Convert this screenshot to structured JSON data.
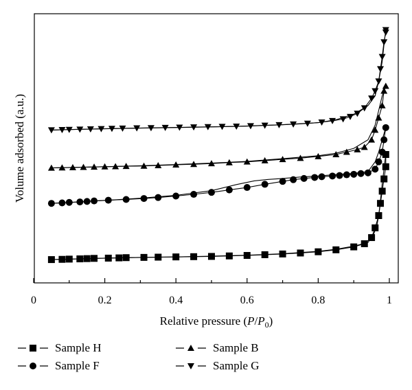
{
  "chart_data": {
    "type": "scatter",
    "xlabel": "Relative pressure (P/P0)",
    "xlabel_parts": [
      "Relative pressure (",
      "P",
      "/",
      "P",
      "0",
      ")"
    ],
    "ylabel": "Volume adsorbed (a.u.)",
    "xlim": [
      0,
      1
    ],
    "xticks": [
      "0",
      "0.2",
      "0.4",
      "0.6",
      "0.8",
      "1"
    ],
    "yticks_shown": false,
    "grid": false,
    "legend_position": "bottom",
    "series": [
      {
        "name": "Sample H",
        "marker": "square",
        "adsorption": [
          [
            0.05,
            0.07
          ],
          [
            0.08,
            0.071
          ],
          [
            0.1,
            0.072
          ],
          [
            0.13,
            0.073
          ],
          [
            0.15,
            0.074
          ],
          [
            0.17,
            0.075
          ],
          [
            0.21,
            0.076
          ],
          [
            0.24,
            0.077
          ],
          [
            0.26,
            0.078
          ],
          [
            0.31,
            0.079
          ],
          [
            0.35,
            0.08
          ],
          [
            0.4,
            0.081
          ],
          [
            0.45,
            0.082
          ],
          [
            0.5,
            0.083
          ],
          [
            0.55,
            0.085
          ],
          [
            0.6,
            0.087
          ],
          [
            0.65,
            0.09
          ],
          [
            0.7,
            0.093
          ],
          [
            0.75,
            0.097
          ],
          [
            0.8,
            0.102
          ],
          [
            0.85,
            0.11
          ],
          [
            0.9,
            0.122
          ],
          [
            0.93,
            0.135
          ],
          [
            0.95,
            0.16
          ],
          [
            0.96,
            0.2
          ],
          [
            0.97,
            0.25
          ],
          [
            0.975,
            0.3
          ],
          [
            0.98,
            0.35
          ],
          [
            0.985,
            0.4
          ],
          [
            0.99,
            0.45
          ],
          [
            0.99,
            0.5
          ]
        ],
        "desorption": [
          [
            0.99,
            0.5
          ],
          [
            0.985,
            0.44
          ],
          [
            0.98,
            0.38
          ],
          [
            0.975,
            0.31
          ],
          [
            0.97,
            0.25
          ],
          [
            0.965,
            0.21
          ],
          [
            0.955,
            0.17
          ],
          [
            0.94,
            0.14
          ],
          [
            0.9,
            0.125
          ],
          [
            0.85,
            0.112
          ],
          [
            0.8,
            0.104
          ],
          [
            0.7,
            0.094
          ],
          [
            0.6,
            0.088
          ],
          [
            0.5,
            0.084
          ],
          [
            0.4,
            0.081
          ],
          [
            0.3,
            0.079
          ],
          [
            0.2,
            0.076
          ],
          [
            0.1,
            0.072
          ],
          [
            0.05,
            0.07
          ]
        ]
      },
      {
        "name": "Sample F",
        "marker": "circle",
        "adsorption": [
          [
            0.05,
            0.3
          ],
          [
            0.08,
            0.302
          ],
          [
            0.1,
            0.304
          ],
          [
            0.13,
            0.306
          ],
          [
            0.15,
            0.308
          ],
          [
            0.17,
            0.31
          ],
          [
            0.21,
            0.313
          ],
          [
            0.26,
            0.316
          ],
          [
            0.31,
            0.32
          ],
          [
            0.35,
            0.324
          ],
          [
            0.4,
            0.33
          ],
          [
            0.45,
            0.337
          ],
          [
            0.5,
            0.345
          ],
          [
            0.55,
            0.355
          ],
          [
            0.6,
            0.365
          ],
          [
            0.65,
            0.378
          ],
          [
            0.7,
            0.39
          ],
          [
            0.73,
            0.397
          ],
          [
            0.76,
            0.402
          ],
          [
            0.79,
            0.406
          ],
          [
            0.81,
            0.409
          ],
          [
            0.84,
            0.412
          ],
          [
            0.86,
            0.414
          ],
          [
            0.88,
            0.417
          ],
          [
            0.9,
            0.419
          ],
          [
            0.92,
            0.422
          ],
          [
            0.94,
            0.425
          ],
          [
            0.96,
            0.44
          ],
          [
            0.97,
            0.47
          ],
          [
            0.98,
            0.51
          ],
          [
            0.985,
            0.56
          ],
          [
            0.99,
            0.61
          ]
        ],
        "desorption": [
          [
            0.99,
            0.61
          ],
          [
            0.98,
            0.56
          ],
          [
            0.97,
            0.51
          ],
          [
            0.96,
            0.47
          ],
          [
            0.94,
            0.43
          ],
          [
            0.9,
            0.423
          ],
          [
            0.85,
            0.418
          ],
          [
            0.8,
            0.412
          ],
          [
            0.75,
            0.408
          ],
          [
            0.7,
            0.402
          ],
          [
            0.66,
            0.398
          ],
          [
            0.62,
            0.392
          ],
          [
            0.57,
            0.377
          ],
          [
            0.5,
            0.352
          ],
          [
            0.4,
            0.333
          ],
          [
            0.3,
            0.321
          ],
          [
            0.2,
            0.312
          ],
          [
            0.1,
            0.304
          ],
          [
            0.05,
            0.3
          ]
        ]
      },
      {
        "name": "Sample B",
        "marker": "triangle-up",
        "adsorption": [
          [
            0.05,
            0.445
          ],
          [
            0.08,
            0.446
          ],
          [
            0.11,
            0.447
          ],
          [
            0.14,
            0.448
          ],
          [
            0.17,
            0.449
          ],
          [
            0.2,
            0.45
          ],
          [
            0.23,
            0.451
          ],
          [
            0.26,
            0.452
          ],
          [
            0.31,
            0.453
          ],
          [
            0.35,
            0.455
          ],
          [
            0.4,
            0.458
          ],
          [
            0.45,
            0.46
          ],
          [
            0.5,
            0.463
          ],
          [
            0.55,
            0.467
          ],
          [
            0.6,
            0.47
          ],
          [
            0.65,
            0.475
          ],
          [
            0.7,
            0.48
          ],
          [
            0.75,
            0.485
          ],
          [
            0.8,
            0.492
          ],
          [
            0.85,
            0.5
          ],
          [
            0.88,
            0.51
          ],
          [
            0.91,
            0.52
          ],
          [
            0.93,
            0.53
          ],
          [
            0.95,
            0.56
          ],
          [
            0.96,
            0.6
          ],
          [
            0.97,
            0.65
          ],
          [
            0.98,
            0.7
          ],
          [
            0.985,
            0.76
          ],
          [
            0.99,
            0.78
          ]
        ],
        "desorption": [
          [
            0.99,
            0.78
          ],
          [
            0.98,
            0.74
          ],
          [
            0.97,
            0.68
          ],
          [
            0.96,
            0.62
          ],
          [
            0.94,
            0.56
          ],
          [
            0.9,
            0.525
          ],
          [
            0.85,
            0.505
          ],
          [
            0.8,
            0.495
          ],
          [
            0.7,
            0.483
          ],
          [
            0.6,
            0.472
          ],
          [
            0.5,
            0.465
          ],
          [
            0.4,
            0.459
          ],
          [
            0.3,
            0.454
          ],
          [
            0.2,
            0.45
          ],
          [
            0.1,
            0.447
          ],
          [
            0.05,
            0.445
          ]
        ]
      },
      {
        "name": "Sample G",
        "marker": "triangle-down",
        "adsorption": [
          [
            0.05,
            0.6
          ],
          [
            0.08,
            0.601
          ],
          [
            0.1,
            0.602
          ],
          [
            0.13,
            0.603
          ],
          [
            0.16,
            0.604
          ],
          [
            0.19,
            0.605
          ],
          [
            0.22,
            0.606
          ],
          [
            0.25,
            0.607
          ],
          [
            0.29,
            0.608
          ],
          [
            0.33,
            0.609
          ],
          [
            0.37,
            0.61
          ],
          [
            0.41,
            0.611
          ],
          [
            0.45,
            0.612
          ],
          [
            0.49,
            0.613
          ],
          [
            0.53,
            0.614
          ],
          [
            0.57,
            0.615
          ],
          [
            0.61,
            0.617
          ],
          [
            0.65,
            0.619
          ],
          [
            0.69,
            0.621
          ],
          [
            0.73,
            0.624
          ],
          [
            0.77,
            0.627
          ],
          [
            0.81,
            0.632
          ],
          [
            0.84,
            0.638
          ],
          [
            0.87,
            0.645
          ],
          [
            0.89,
            0.655
          ],
          [
            0.91,
            0.668
          ],
          [
            0.93,
            0.69
          ],
          [
            0.95,
            0.73
          ],
          [
            0.96,
            0.76
          ],
          [
            0.97,
            0.8
          ],
          [
            0.975,
            0.85
          ],
          [
            0.98,
            0.9
          ],
          [
            0.985,
            0.96
          ],
          [
            0.99,
            1.0
          ],
          [
            0.99,
            1.01
          ]
        ],
        "desorption": [
          [
            0.99,
            1.01
          ],
          [
            0.985,
            0.95
          ],
          [
            0.98,
            0.88
          ],
          [
            0.97,
            0.8
          ],
          [
            0.96,
            0.74
          ],
          [
            0.94,
            0.7
          ],
          [
            0.9,
            0.665
          ],
          [
            0.85,
            0.642
          ],
          [
            0.8,
            0.63
          ],
          [
            0.7,
            0.622
          ],
          [
            0.6,
            0.616
          ],
          [
            0.5,
            0.613
          ],
          [
            0.4,
            0.61
          ],
          [
            0.3,
            0.608
          ],
          [
            0.2,
            0.605
          ],
          [
            0.1,
            0.602
          ],
          [
            0.05,
            0.6
          ]
        ]
      }
    ]
  }
}
